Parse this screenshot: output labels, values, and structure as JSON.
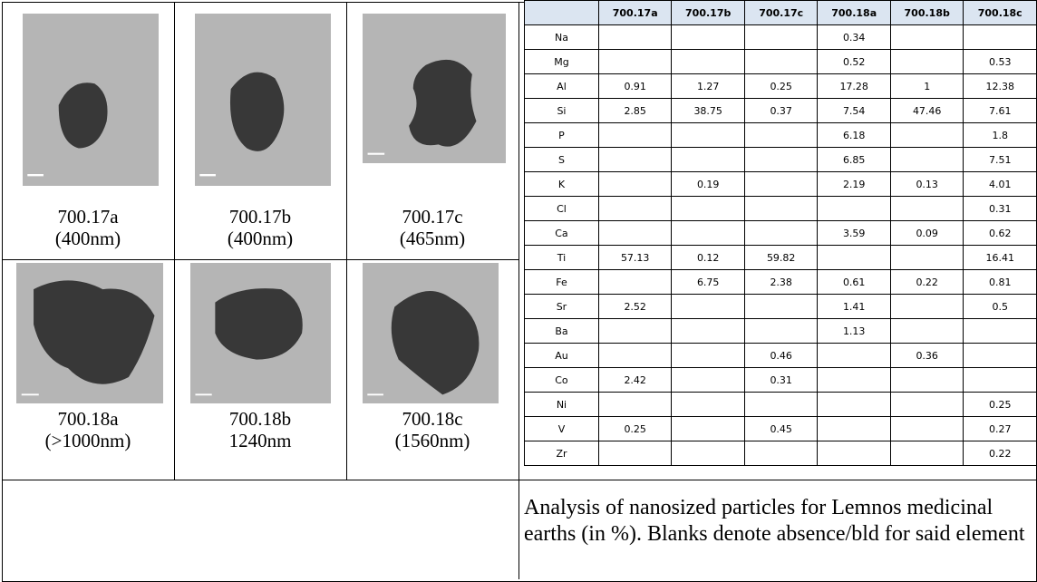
{
  "particles": [
    {
      "name": "700.17a",
      "size": "(400nm)"
    },
    {
      "name": "700.17b",
      "size": "(400nm)"
    },
    {
      "name": "700.17c",
      "size": "(465nm)"
    },
    {
      "name": "700.18a",
      "size": "(>1000nm)"
    },
    {
      "name": "700.18b",
      "size": "1240nm"
    },
    {
      "name": "700.18c",
      "size": "(1560nm)"
    }
  ],
  "table": {
    "header": [
      "700.17a",
      "700.17b",
      "700.17c",
      "700.18a",
      "700.18b",
      "700.18c"
    ],
    "rows": [
      [
        "Na",
        null,
        null,
        null,
        0.34,
        null,
        null
      ],
      [
        "Mg",
        null,
        null,
        null,
        0.52,
        null,
        0.53
      ],
      [
        "Al",
        0.91,
        1.27,
        0.25,
        17.28,
        1,
        12.38
      ],
      [
        "Si",
        2.85,
        38.75,
        0.37,
        7.54,
        47.46,
        7.61
      ],
      [
        "P",
        null,
        null,
        null,
        6.18,
        null,
        1.8
      ],
      [
        "S",
        null,
        null,
        null,
        6.85,
        null,
        7.51
      ],
      [
        "K",
        null,
        0.19,
        null,
        2.19,
        0.13,
        4.01
      ],
      [
        "Cl",
        null,
        null,
        null,
        null,
        null,
        0.31
      ],
      [
        "Ca",
        null,
        null,
        null,
        3.59,
        0.09,
        0.62
      ],
      [
        "Ti",
        57.13,
        0.12,
        59.82,
        null,
        null,
        16.41
      ],
      [
        "Fe",
        null,
        6.75,
        2.38,
        0.61,
        0.22,
        0.81
      ],
      [
        "Sr",
        2.52,
        null,
        null,
        1.41,
        null,
        0.5
      ],
      [
        "Ba",
        null,
        null,
        null,
        1.13,
        null,
        null
      ],
      [
        "Au",
        null,
        null,
        0.46,
        null,
        0.36,
        null
      ],
      [
        "Co",
        2.42,
        null,
        0.31,
        null,
        null,
        null
      ],
      [
        "Ni",
        null,
        null,
        null,
        null,
        null,
        0.25
      ],
      [
        "V",
        0.25,
        null,
        0.45,
        null,
        null,
        0.27
      ],
      [
        "Zr",
        null,
        null,
        null,
        null,
        null,
        0.22
      ]
    ]
  },
  "caption": "Analysis of nanosized particles for Lemnos medicinal earths (in %).  Blanks denote absence/bld for said element"
}
